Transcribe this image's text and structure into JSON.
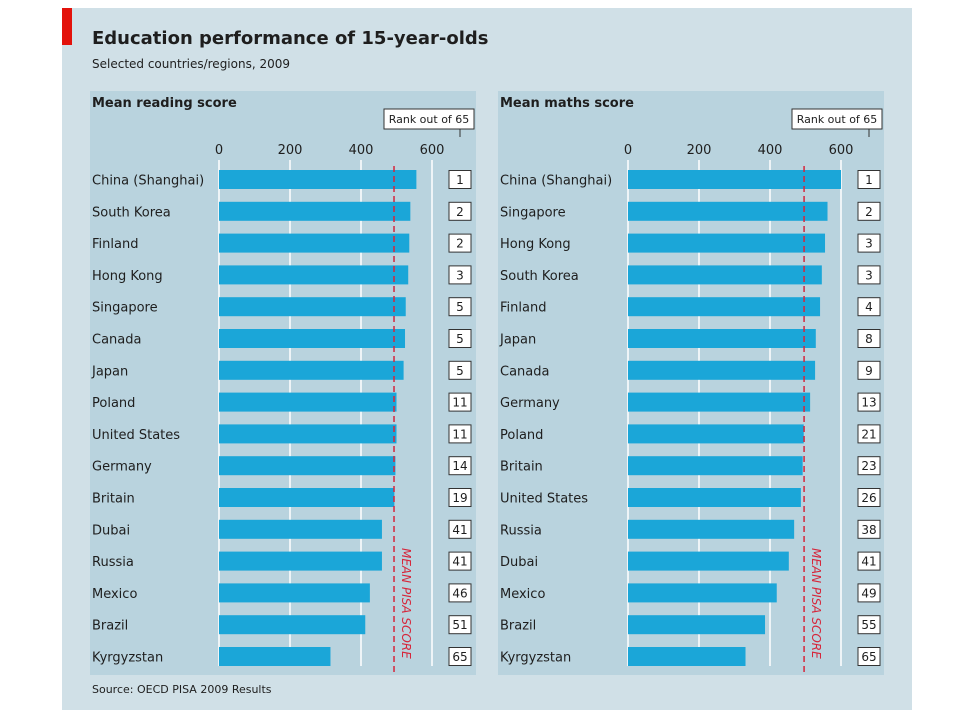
{
  "header": {
    "title": "Education performance of 15-year-olds",
    "subtitle": "Selected countries/regions, 2009"
  },
  "footer": {
    "source": "Source: OECD PISA 2009 Results"
  },
  "colors": {
    "background": "#d0e0e7",
    "panel": "#b9d3de",
    "bar": "#1ba6d8",
    "accent_red": "#e3120b",
    "mean_line": "#d6263b"
  },
  "chart_data": [
    {
      "type": "bar",
      "orientation": "horizontal",
      "title": "Mean reading score",
      "rank_label": "Rank out of 65",
      "mean_label": "MEAN PISA SCORE",
      "mean_value": 493,
      "xlim": [
        0,
        600
      ],
      "xticks": [
        0,
        200,
        400,
        600
      ],
      "grid": true,
      "categories": [
        "China (Shanghai)",
        "South Korea",
        "Finland",
        "Hong Kong",
        "Singapore",
        "Canada",
        "Japan",
        "Poland",
        "United States",
        "Germany",
        "Britain",
        "Dubai",
        "Russia",
        "Mexico",
        "Brazil",
        "Kyrgyzstan"
      ],
      "values": [
        556,
        539,
        536,
        533,
        526,
        524,
        520,
        500,
        500,
        497,
        494,
        459,
        459,
        425,
        412,
        314
      ],
      "ranks": [
        "1",
        "2",
        "2",
        "3",
        "5",
        "5",
        "5",
        "11",
        "11",
        "14",
        "19",
        "41",
        "41",
        "46",
        "51",
        "65"
      ]
    },
    {
      "type": "bar",
      "orientation": "horizontal",
      "title": "Mean maths score",
      "rank_label": "Rank out of 65",
      "mean_label": "MEAN PISA SCORE",
      "mean_value": 496,
      "xlim": [
        0,
        600
      ],
      "xticks": [
        0,
        200,
        400,
        600
      ],
      "grid": true,
      "categories": [
        "China (Shanghai)",
        "Singapore",
        "Hong Kong",
        "South Korea",
        "Finland",
        "Japan",
        "Canada",
        "Germany",
        "Poland",
        "Britain",
        "United States",
        "Russia",
        "Dubai",
        "Mexico",
        "Brazil",
        "Kyrgyzstan"
      ],
      "values": [
        600,
        562,
        555,
        546,
        541,
        529,
        527,
        513,
        495,
        492,
        487,
        468,
        453,
        419,
        386,
        331
      ],
      "ranks": [
        "1",
        "2",
        "3",
        "3",
        "4",
        "8",
        "9",
        "13",
        "21",
        "23",
        "26",
        "38",
        "41",
        "49",
        "55",
        "65"
      ]
    }
  ]
}
